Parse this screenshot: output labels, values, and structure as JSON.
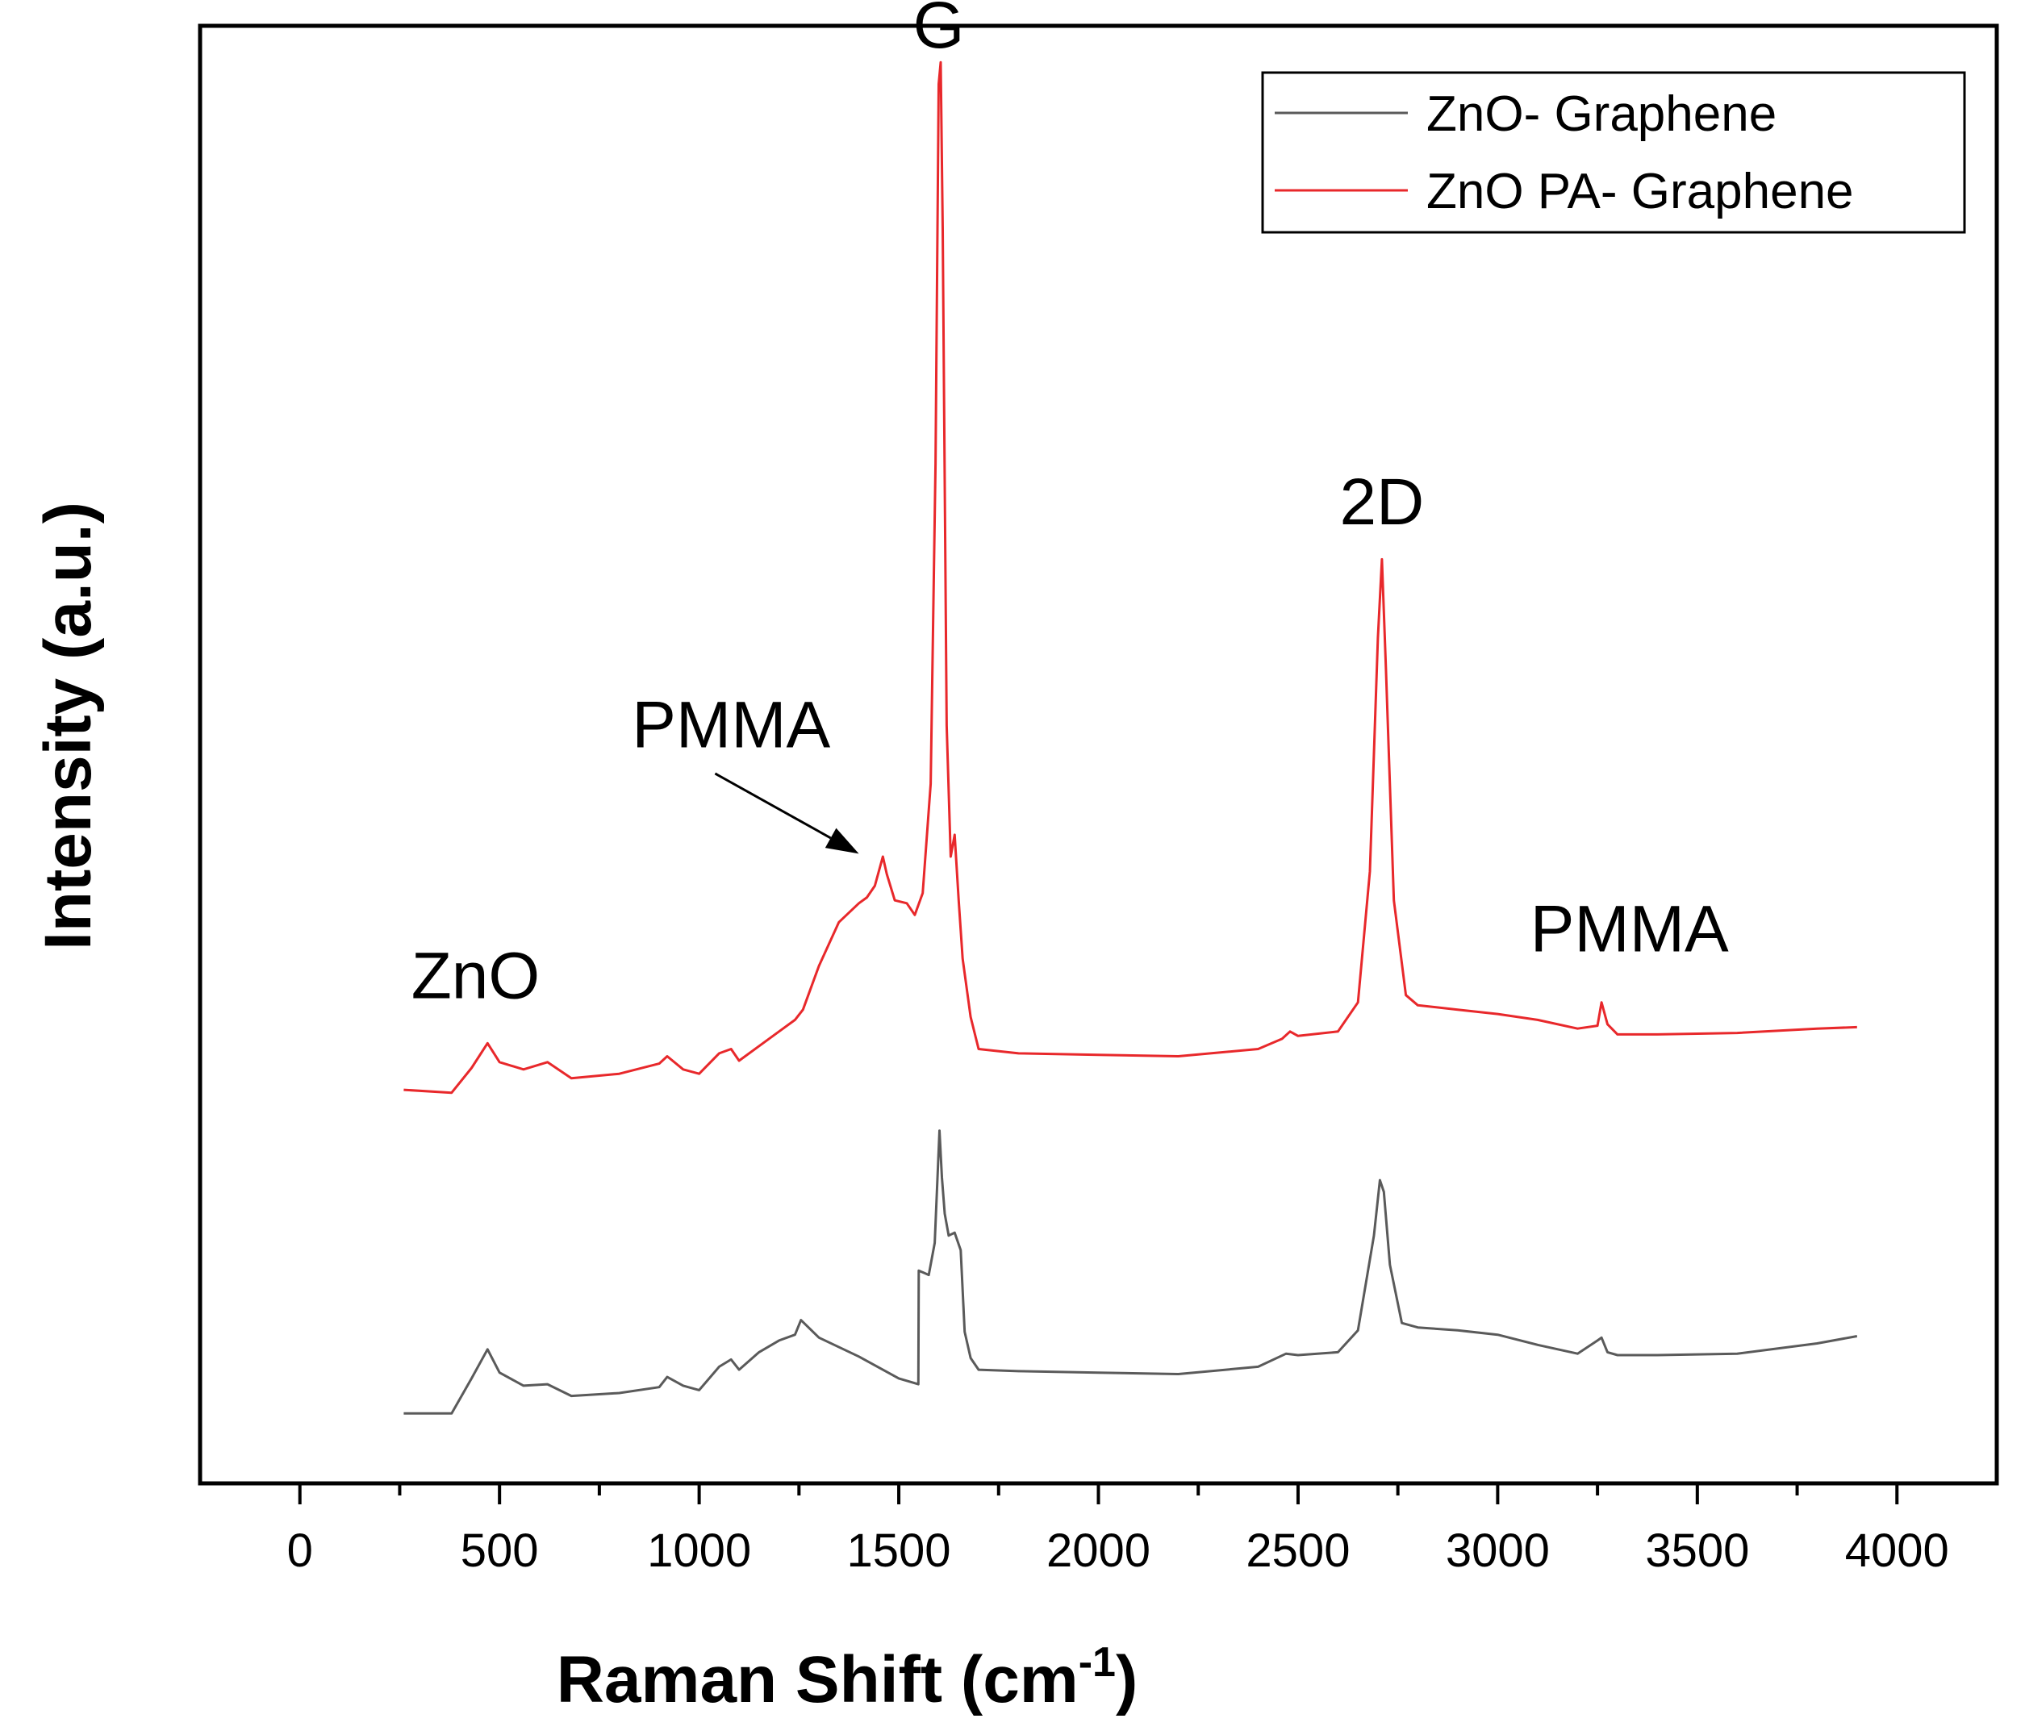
{
  "chart_data": {
    "type": "line",
    "title": "",
    "xlabel": "Raman Shift (cm",
    "xlabel_sup": "-1",
    "xlabel_tail": ")",
    "ylabel": "Intensity (a.u.)",
    "xlim": [
      -250,
      4250
    ],
    "ylim": [
      0,
      1
    ],
    "x_ticks": [
      0,
      500,
      1000,
      1500,
      2000,
      2500,
      3000,
      3500,
      4000
    ],
    "x_tick_labels": [
      "0",
      "500",
      "1000",
      "1500",
      "2000",
      "2500",
      "3000",
      "3500",
      "4000"
    ],
    "y_ticks_shown": false,
    "grid": false,
    "legend_position": "top-right",
    "series": [
      {
        "name": "ZnO- Graphene",
        "color": "#5a5a5a",
        "x": [
          260,
          380,
          430,
          470,
          500,
          560,
          620,
          680,
          800,
          900,
          920,
          960,
          1000,
          1050,
          1080,
          1100,
          1150,
          1200,
          1240,
          1255,
          1300,
          1400,
          1500,
          1549,
          1550,
          1575,
          1590,
          1602,
          1608,
          1615,
          1625,
          1640,
          1655,
          1665,
          1680,
          1700,
          1800,
          2000,
          2200,
          2400,
          2470,
          2500,
          2600,
          2650,
          2690,
          2705,
          2715,
          2730,
          2760,
          2800,
          2900,
          3000,
          3100,
          3200,
          3250,
          3260,
          3275,
          3300,
          3400,
          3600,
          3800,
          3900
        ],
        "values": [
          0.048,
          0.048,
          0.072,
          0.092,
          0.076,
          0.067,
          0.068,
          0.06,
          0.062,
          0.066,
          0.073,
          0.067,
          0.064,
          0.08,
          0.085,
          0.078,
          0.09,
          0.098,
          0.102,
          0.112,
          0.1,
          0.087,
          0.072,
          0.068,
          0.146,
          0.143,
          0.165,
          0.242,
          0.21,
          0.185,
          0.17,
          0.172,
          0.16,
          0.104,
          0.086,
          0.078,
          0.077,
          0.076,
          0.075,
          0.08,
          0.089,
          0.088,
          0.09,
          0.105,
          0.17,
          0.208,
          0.2,
          0.15,
          0.11,
          0.107,
          0.105,
          0.102,
          0.095,
          0.089,
          0.098,
          0.1,
          0.09,
          0.088,
          0.088,
          0.089,
          0.096,
          0.101
        ]
      },
      {
        "name": "ZnO PA- Graphene",
        "color": "#e8282b",
        "x": [
          260,
          380,
          430,
          470,
          500,
          560,
          620,
          680,
          800,
          900,
          920,
          960,
          1000,
          1050,
          1080,
          1100,
          1150,
          1200,
          1240,
          1260,
          1300,
          1350,
          1400,
          1420,
          1440,
          1460,
          1470,
          1490,
          1520,
          1540,
          1560,
          1580,
          1592,
          1600,
          1605,
          1610,
          1620,
          1630,
          1640,
          1650,
          1660,
          1680,
          1700,
          1800,
          2000,
          2200,
          2400,
          2460,
          2480,
          2500,
          2600,
          2650,
          2680,
          2700,
          2710,
          2720,
          2740,
          2770,
          2800,
          2900,
          3000,
          3100,
          3200,
          3250,
          3260,
          3275,
          3300,
          3400,
          3600,
          3800,
          3900
        ],
        "values": [
          0.27,
          0.268,
          0.285,
          0.302,
          0.289,
          0.284,
          0.289,
          0.278,
          0.281,
          0.288,
          0.293,
          0.284,
          0.281,
          0.295,
          0.298,
          0.29,
          0.3,
          0.31,
          0.318,
          0.325,
          0.355,
          0.385,
          0.398,
          0.402,
          0.41,
          0.43,
          0.418,
          0.4,
          0.398,
          0.39,
          0.405,
          0.48,
          0.7,
          0.96,
          0.975,
          0.86,
          0.52,
          0.43,
          0.445,
          0.4,
          0.36,
          0.32,
          0.298,
          0.295,
          0.294,
          0.293,
          0.298,
          0.305,
          0.31,
          0.307,
          0.31,
          0.33,
          0.42,
          0.58,
          0.634,
          0.56,
          0.4,
          0.335,
          0.328,
          0.325,
          0.322,
          0.318,
          0.312,
          0.314,
          0.33,
          0.315,
          0.308,
          0.308,
          0.309,
          0.312,
          0.313
        ]
      }
    ],
    "annotations": [
      {
        "text": "G",
        "x": 1600,
        "y": 0.985
      },
      {
        "text": "2D",
        "x": 2710,
        "y": 0.658
      },
      {
        "text": "PMMA",
        "x": 1080,
        "y": 0.505
      },
      {
        "text": "PMMA",
        "x": 3330,
        "y": 0.365
      },
      {
        "text": "ZnO",
        "x": 440,
        "y": 0.333
      }
    ],
    "arrow": {
      "from_x": 1040,
      "from_y": 0.487,
      "to_x": 1400,
      "to_y": 0.432
    }
  }
}
